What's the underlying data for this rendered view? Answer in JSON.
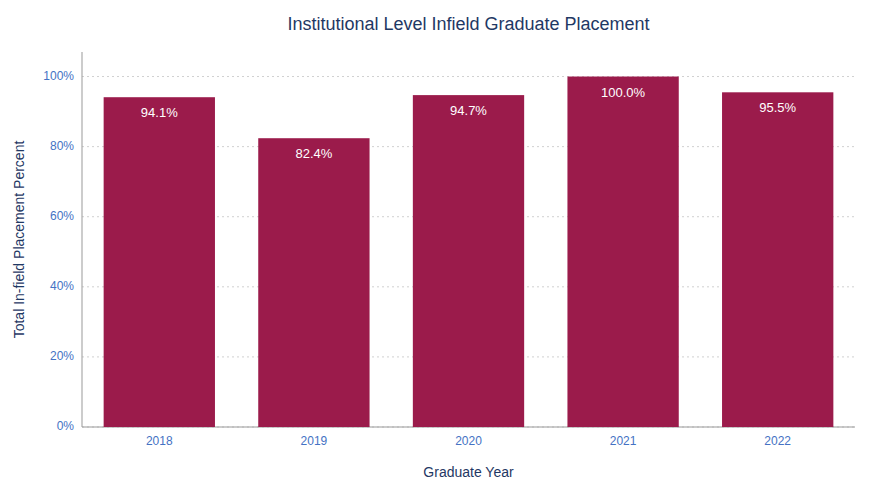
{
  "chart_data": {
    "type": "bar",
    "title": "Institutional Level Infield Graduate Placement",
    "xlabel": "Graduate Year",
    "ylabel": "Total In-field Placement Percent",
    "categories": [
      "2018",
      "2019",
      "2020",
      "2021",
      "2022"
    ],
    "values": [
      94.1,
      82.4,
      94.7,
      100.0,
      95.5
    ],
    "value_labels": [
      "94.1%",
      "82.4%",
      "94.7%",
      "100.0%",
      "95.5%"
    ],
    "color": "#9B1B4B",
    "ylim": [
      0,
      107
    ],
    "yticks": [
      {
        "value": 0,
        "label": "0%"
      },
      {
        "value": 20,
        "label": "20%"
      },
      {
        "value": 40,
        "label": "40%"
      },
      {
        "value": 60,
        "label": "60%"
      },
      {
        "value": 80,
        "label": "80%"
      },
      {
        "value": 100,
        "label": "100%"
      }
    ],
    "grid": true,
    "data_labels": true
  }
}
